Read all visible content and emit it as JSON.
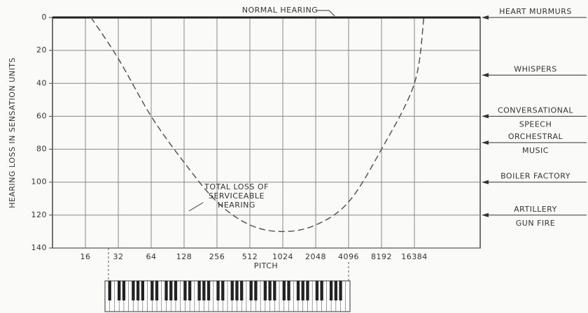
{
  "chart_data": {
    "type": "line",
    "y_label": "HEARING LOSS IN SENSATION UNITS",
    "x_label": "PITCH",
    "x_scale": "log2",
    "xlim": [
      8,
      65536
    ],
    "xticks": [
      16,
      32,
      64,
      128,
      256,
      512,
      1024,
      2048,
      4096,
      8192,
      16384
    ],
    "ylim": [
      0,
      140
    ],
    "yticks": [
      0,
      20,
      40,
      60,
      80,
      100,
      120,
      140
    ],
    "y_inverted": true,
    "grid": true,
    "color": "#555555",
    "line_style": "dashed",
    "x": [
      18,
      32,
      64,
      128,
      256,
      512,
      1024,
      2048,
      4096,
      8192,
      16384,
      20000
    ],
    "values": [
      0,
      25,
      60,
      88,
      112,
      126,
      130,
      126,
      112,
      80,
      40,
      0
    ],
    "baseline_label": "NORMAL HEARING",
    "curve_label": [
      "TOTAL LOSS OF",
      "SERVICEABLE",
      "HEARING"
    ],
    "reference_levels": [
      {
        "lines": [
          "HEART MURMURS"
        ],
        "value": 0
      },
      {
        "lines": [
          "WHISPERS"
        ],
        "value": 35
      },
      {
        "lines": [
          "CONVERSATIONAL",
          "SPEECH"
        ],
        "value": 60
      },
      {
        "lines": [
          "ORCHESTRAL",
          "MUSIC"
        ],
        "value": 76
      },
      {
        "lines": [
          "BOILER FACTORY"
        ],
        "value": 100
      },
      {
        "lines": [
          "ARTILLERY",
          "GUN FIRE"
        ],
        "value": 120
      }
    ]
  }
}
